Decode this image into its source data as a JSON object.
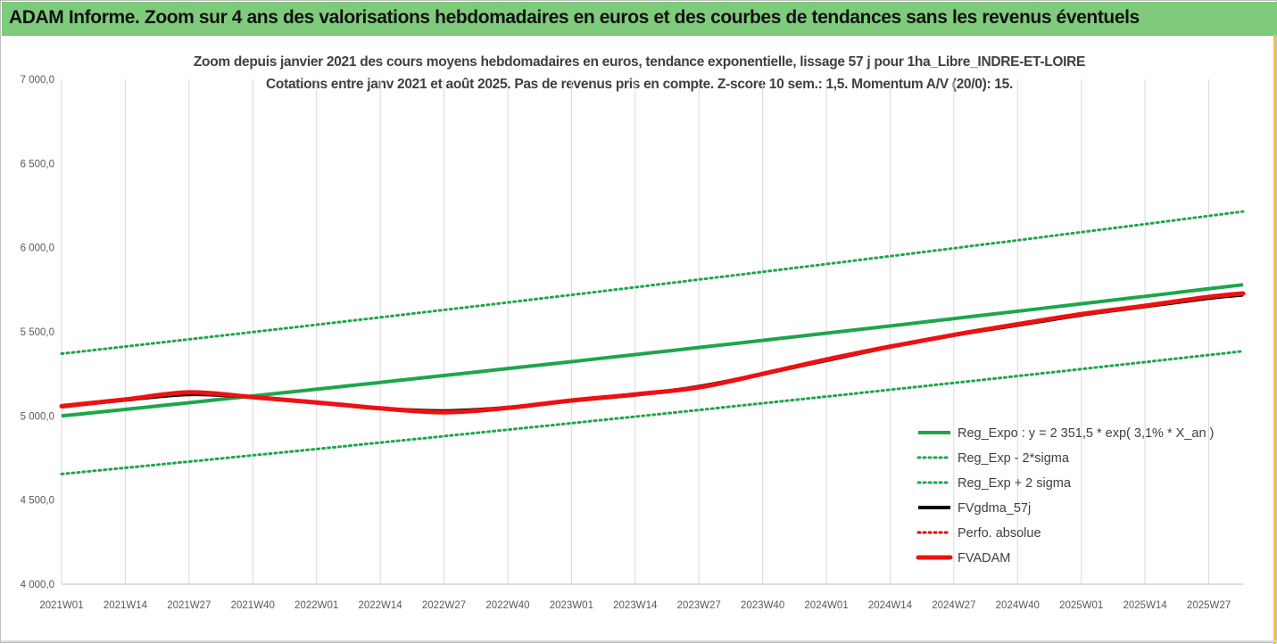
{
  "banner": {
    "title": "ADAM Informe. Zoom sur 4 ans des valorisations hebdomadaires en euros et des courbes de tendances sans les revenus éventuels"
  },
  "chart_data": {
    "type": "line",
    "title": "Zoom depuis janvier 2021 des cours moyens hebdomadaires en euros, tendance exponentielle, lissage 57 j pour 1ha_Libre_INDRE-ET-LOIRE",
    "subtitle": "Cotations entre janv 2021 et août 2025. Pas de revenus pris en compte. Z-score 10 sem.: 1,5. Momentum A/V (20/0): 15.",
    "xlabel": "",
    "ylabel": "",
    "x_ticks": [
      "2021W01",
      "2021W14",
      "2021W27",
      "2021W40",
      "2022W01",
      "2022W14",
      "2022W27",
      "2022W40",
      "2023W01",
      "2023W14",
      "2023W27",
      "2023W40",
      "2024W01",
      "2024W14",
      "2024W27",
      "2024W40",
      "2025W01",
      "2025W14",
      "2025W27"
    ],
    "y_ticks": [
      "4 000,0",
      "4 500,0",
      "5 000,0",
      "5 500,0",
      "6 000,0",
      "6 500,0",
      "7 000,0"
    ],
    "ylim": [
      4000,
      7000
    ],
    "grid": "vertical",
    "legend_position": "bottom-right",
    "series": [
      {
        "name": "Reg_Expo : y = 2 351,5 * exp( 3,1% *  X_an )",
        "color": "#1ea64b",
        "style": "solid",
        "x": [
          "2021W01",
          "2025W34"
        ],
        "values": [
          5000,
          5780
        ]
      },
      {
        "name": "Reg_Exp - 2*sigma",
        "color": "#1ea64b",
        "style": "dotted",
        "x": [
          "2021W01",
          "2025W34"
        ],
        "values": [
          4655,
          5385
        ]
      },
      {
        "name": "Reg_Exp + 2 sigma",
        "color": "#1ea64b",
        "style": "dotted",
        "x": [
          "2021W01",
          "2025W34"
        ],
        "values": [
          5370,
          6215
        ]
      },
      {
        "name": "FVgdma_57j",
        "color": "#000000",
        "style": "solid",
        "x": [
          "2021W01",
          "2021W14",
          "2021W27",
          "2021W40",
          "2022W01",
          "2022W14",
          "2022W27",
          "2022W40",
          "2023W01",
          "2023W14",
          "2023W27",
          "2023W40",
          "2024W01",
          "2024W14",
          "2024W27",
          "2024W40",
          "2025W01",
          "2025W14",
          "2025W27",
          "2025W34"
        ],
        "values": [
          5055,
          5095,
          5128,
          5112,
          5080,
          5045,
          5030,
          5050,
          5090,
          5125,
          5175,
          5250,
          5330,
          5410,
          5480,
          5540,
          5600,
          5650,
          5700,
          5720
        ]
      },
      {
        "name": "Perfo. absolue",
        "color": "#e00000",
        "style": "dotted",
        "x": [],
        "values": []
      },
      {
        "name": "FVADAM",
        "color": "#ee1111",
        "style": "solid-thick",
        "x": [
          "2021W01",
          "2021W14",
          "2021W27",
          "2021W40",
          "2022W01",
          "2022W14",
          "2022W27",
          "2022W40",
          "2023W01",
          "2023W14",
          "2023W27",
          "2023W40",
          "2024W01",
          "2024W14",
          "2024W27",
          "2024W40",
          "2025W01",
          "2025W14",
          "2025W27",
          "2025W34"
        ],
        "values": [
          5058,
          5098,
          5140,
          5112,
          5080,
          5045,
          5022,
          5048,
          5092,
          5128,
          5170,
          5250,
          5335,
          5412,
          5482,
          5545,
          5605,
          5655,
          5708,
          5728
        ]
      }
    ]
  }
}
